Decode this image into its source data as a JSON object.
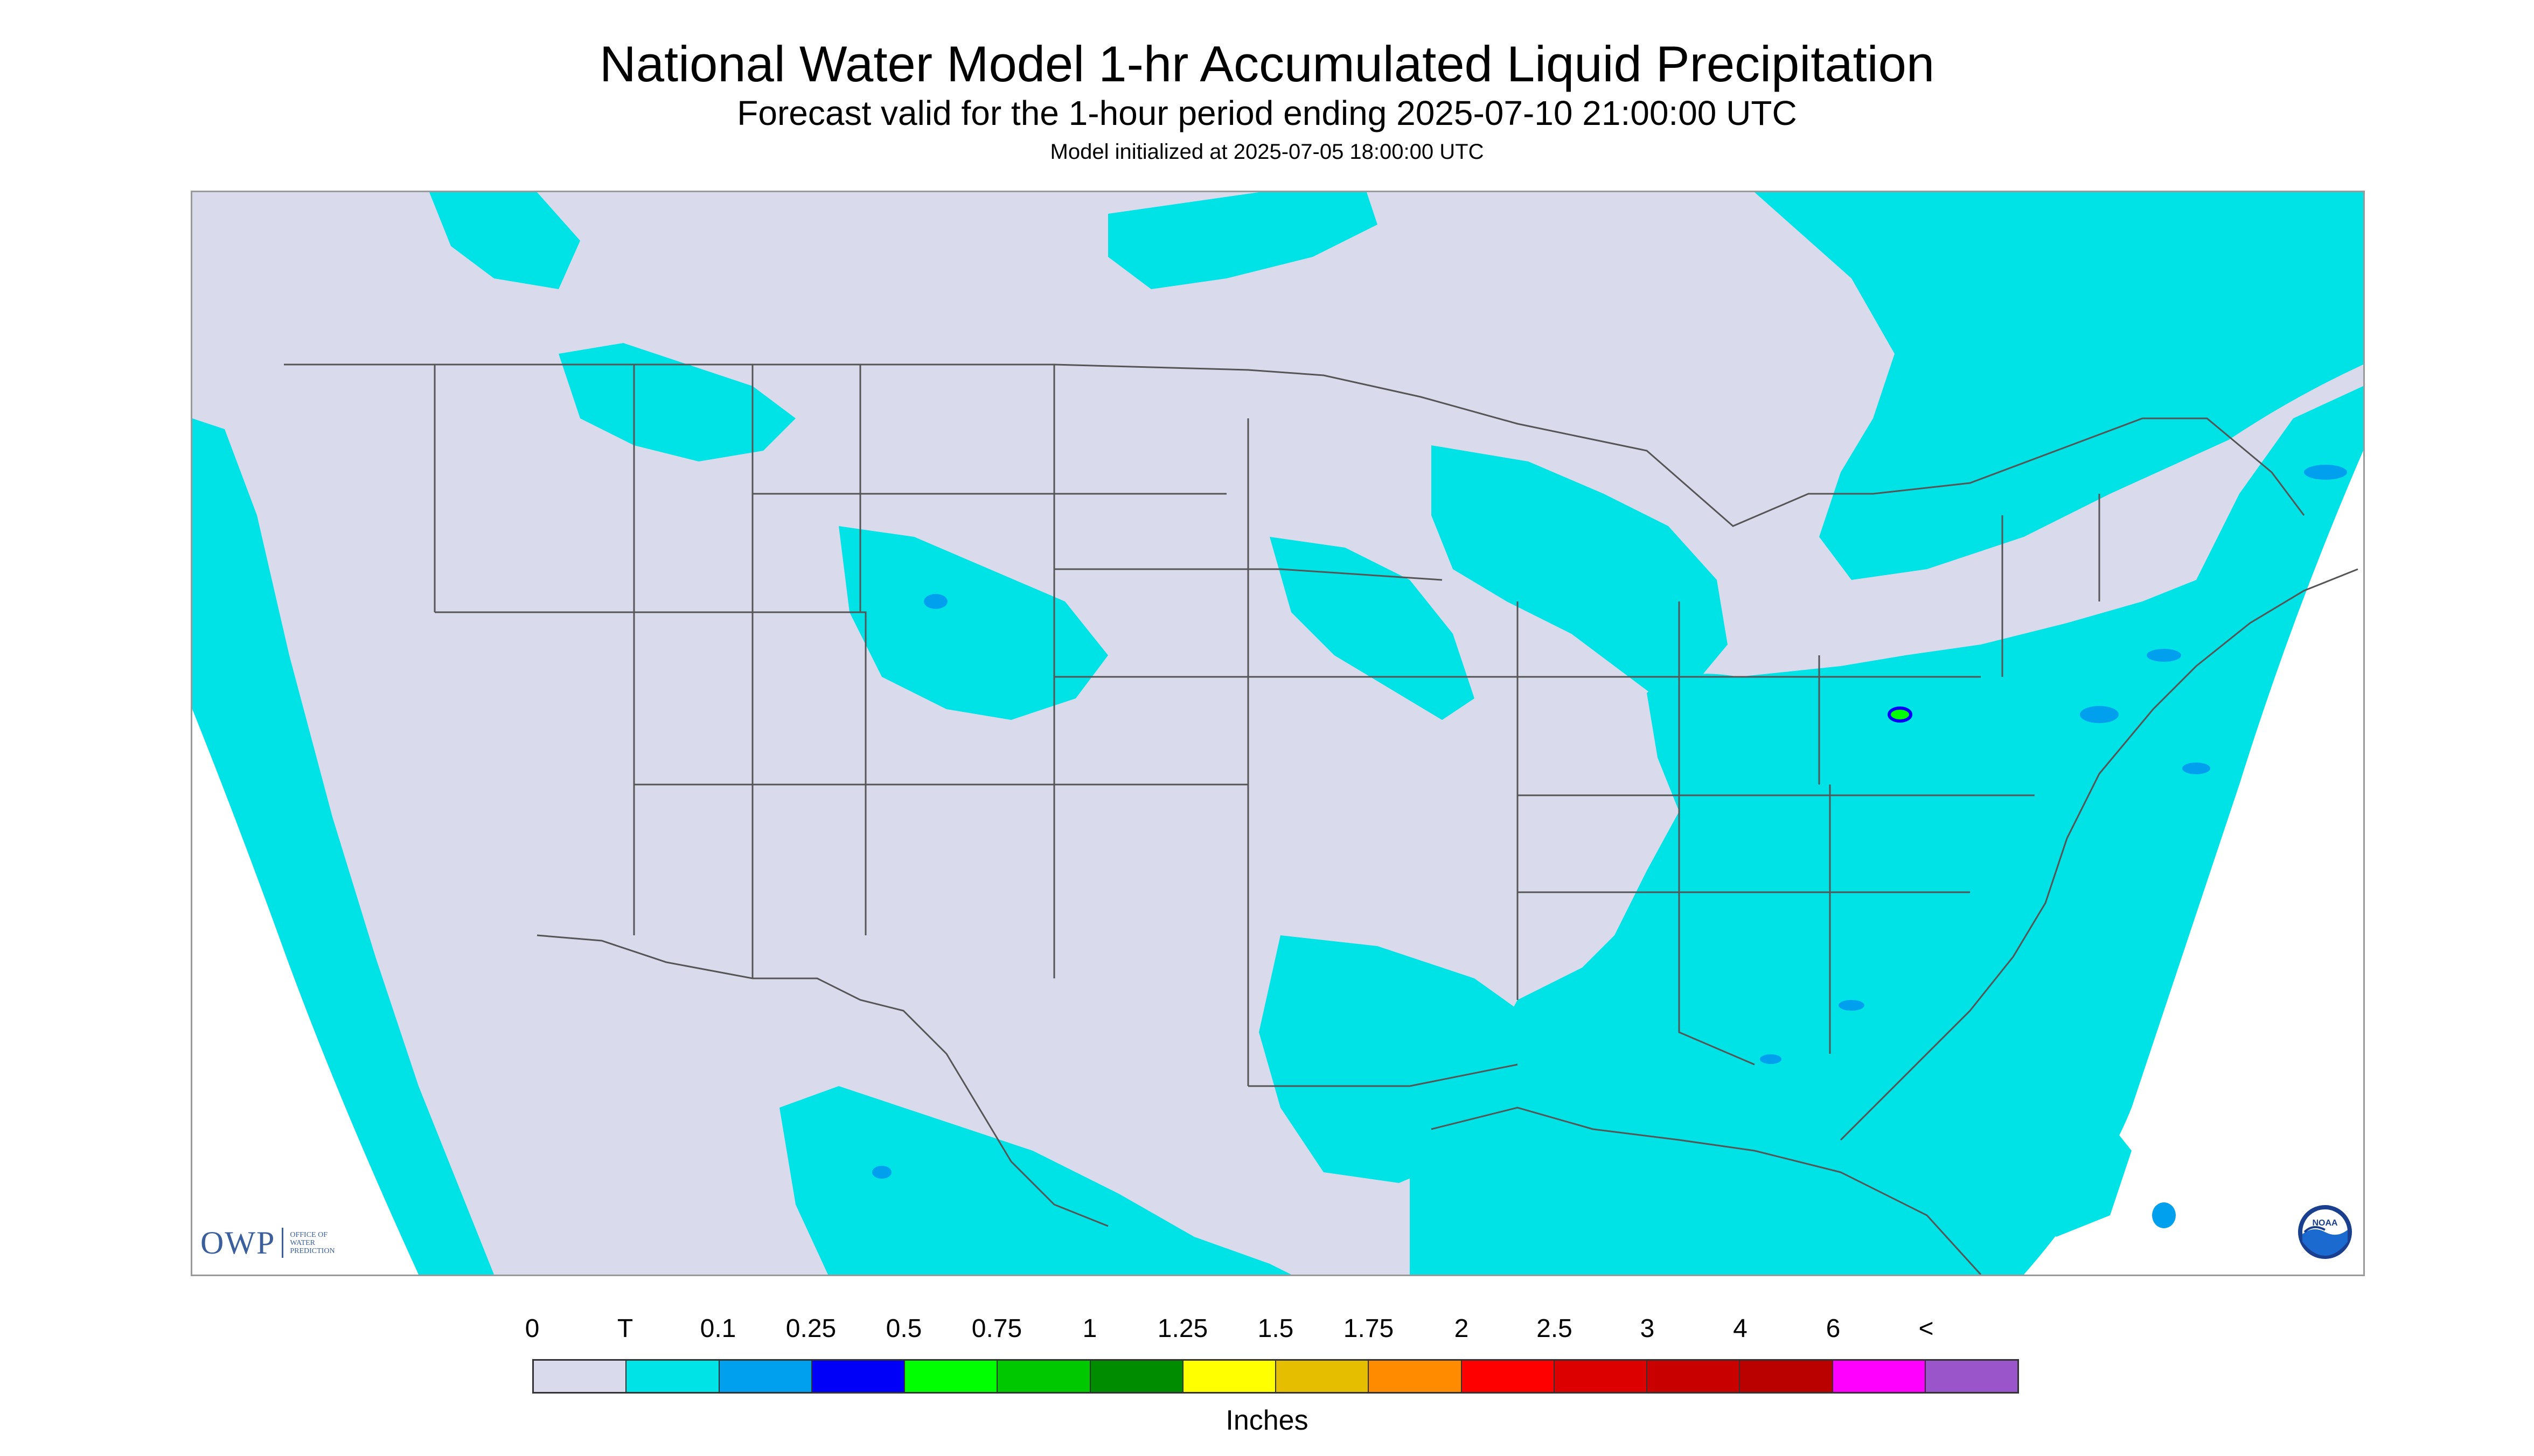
{
  "title": "National Water Model 1-hr Accumulated Liquid Precipitation",
  "subtitle": "Forecast valid for the 1-hour period ending 2025-07-10 21:00:00 UTC",
  "init_note": "Model initialized at 2025-07-05 18:00:00 UTC",
  "logos": {
    "owp_mark": "OWP",
    "owp_text": "OFFICE OF WATER PREDICTION",
    "noaa_text": "NOAA"
  },
  "legend": {
    "labels": [
      "0",
      "T",
      "0.1",
      "0.25",
      "0.5",
      "0.75",
      "1",
      "1.25",
      "1.5",
      "1.75",
      "2",
      "2.5",
      "3",
      "4",
      "6",
      "<"
    ],
    "colors": [
      "#dadaed",
      "#00e3e6",
      "#00a0ef",
      "#0000f8",
      "#00ff00",
      "#00c800",
      "#008c00",
      "#ffff00",
      "#e6be00",
      "#ff8c00",
      "#ff0000",
      "#dc0000",
      "#c80000",
      "#bb0000",
      "#ff00ff",
      "#9955c9"
    ],
    "units": "Inches"
  },
  "map_colors": {
    "land": "#dadaed",
    "outside": "#ffffff",
    "precip_trace": "#00e3e6",
    "precip_light": "#00a0ef",
    "precip_mod": "#00ff00",
    "boundary": "#555555"
  }
}
